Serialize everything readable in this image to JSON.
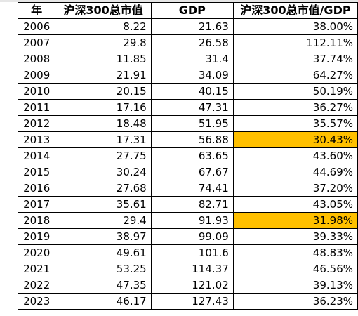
{
  "table": {
    "headers": [
      "年",
      "沪深300总市值",
      "GDP",
      "沪深300总市值/GDP"
    ],
    "rows": [
      {
        "year": "2006",
        "csi300": "8.22",
        "gdp": "21.63",
        "ratio": "38.00%",
        "highlight": false
      },
      {
        "year": "2007",
        "csi300": "29.8",
        "gdp": "26.58",
        "ratio": "112.11%",
        "highlight": false
      },
      {
        "year": "2008",
        "csi300": "11.85",
        "gdp": "31.4",
        "ratio": "37.74%",
        "highlight": false
      },
      {
        "year": "2009",
        "csi300": "21.91",
        "gdp": "34.09",
        "ratio": "64.27%",
        "highlight": false
      },
      {
        "year": "2010",
        "csi300": "20.15",
        "gdp": "40.15",
        "ratio": "50.19%",
        "highlight": false
      },
      {
        "year": "2011",
        "csi300": "17.16",
        "gdp": "47.31",
        "ratio": "36.27%",
        "highlight": false
      },
      {
        "year": "2012",
        "csi300": "18.48",
        "gdp": "51.95",
        "ratio": "35.57%",
        "highlight": false
      },
      {
        "year": "2013",
        "csi300": "17.31",
        "gdp": "56.88",
        "ratio": "30.43%",
        "highlight": true
      },
      {
        "year": "2014",
        "csi300": "27.75",
        "gdp": "63.65",
        "ratio": "43.60%",
        "highlight": false
      },
      {
        "year": "2015",
        "csi300": "30.24",
        "gdp": "67.67",
        "ratio": "44.69%",
        "highlight": false
      },
      {
        "year": "2016",
        "csi300": "27.68",
        "gdp": "74.41",
        "ratio": "37.20%",
        "highlight": false
      },
      {
        "year": "2017",
        "csi300": "35.61",
        "gdp": "82.71",
        "ratio": "43.05%",
        "highlight": false
      },
      {
        "year": "2018",
        "csi300": "29.4",
        "gdp": "91.93",
        "ratio": "31.98%",
        "highlight": true
      },
      {
        "year": "2019",
        "csi300": "38.97",
        "gdp": "99.09",
        "ratio": "39.33%",
        "highlight": false
      },
      {
        "year": "2020",
        "csi300": "49.61",
        "gdp": "101.6",
        "ratio": "48.83%",
        "highlight": false
      },
      {
        "year": "2021",
        "csi300": "53.25",
        "gdp": "114.37",
        "ratio": "46.56%",
        "highlight": false
      },
      {
        "year": "2022",
        "csi300": "47.35",
        "gdp": "121.02",
        "ratio": "39.13%",
        "highlight": false
      },
      {
        "year": "2023",
        "csi300": "46.17",
        "gdp": "127.43",
        "ratio": "36.23%",
        "highlight": false
      }
    ]
  },
  "colors": {
    "highlight": "#ffc000",
    "border": "#000000",
    "background": "#ffffff"
  }
}
